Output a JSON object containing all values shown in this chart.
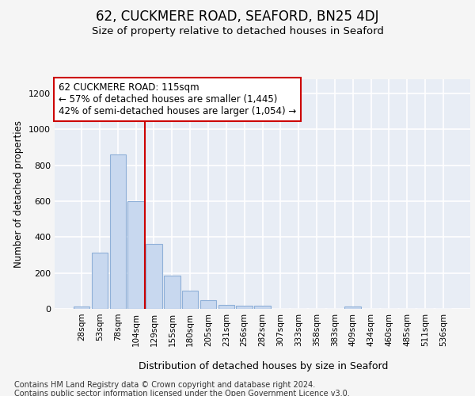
{
  "title1": "62, CUCKMERE ROAD, SEAFORD, BN25 4DJ",
  "title2": "Size of property relative to detached houses in Seaford",
  "xlabel": "Distribution of detached houses by size in Seaford",
  "ylabel": "Number of detached properties",
  "categories": [
    "28sqm",
    "53sqm",
    "78sqm",
    "104sqm",
    "129sqm",
    "155sqm",
    "180sqm",
    "205sqm",
    "231sqm",
    "256sqm",
    "282sqm",
    "307sqm",
    "333sqm",
    "358sqm",
    "383sqm",
    "409sqm",
    "434sqm",
    "460sqm",
    "485sqm",
    "511sqm",
    "536sqm"
  ],
  "values": [
    15,
    315,
    860,
    600,
    360,
    185,
    100,
    48,
    22,
    18,
    18,
    0,
    0,
    0,
    0,
    12,
    0,
    0,
    0,
    0,
    0
  ],
  "bar_color": "#c8d8ef",
  "bar_edge_color": "#8fb0d8",
  "annotation_box_text": "62 CUCKMERE ROAD: 115sqm\n← 57% of detached houses are smaller (1,445)\n42% of semi-detached houses are larger (1,054) →",
  "vline_color": "#cc0000",
  "vline_x_index": 3.5,
  "ylim": [
    0,
    1280
  ],
  "yticks": [
    0,
    200,
    400,
    600,
    800,
    1000,
    1200
  ],
  "footer1": "Contains HM Land Registry data © Crown copyright and database right 2024.",
  "footer2": "Contains public sector information licensed under the Open Government Licence v3.0.",
  "bg_color": "#f5f5f5",
  "plot_bg_color": "#e8edf5"
}
